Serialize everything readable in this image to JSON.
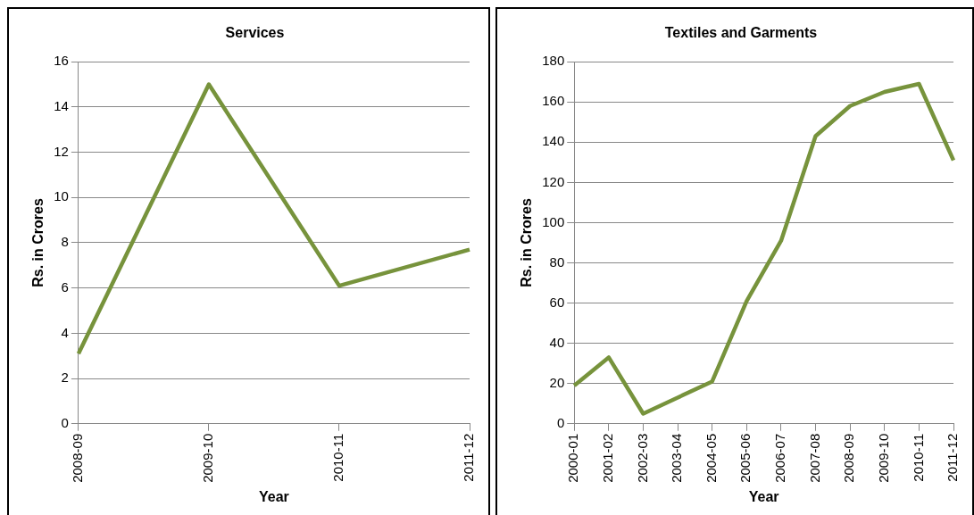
{
  "chart_data": [
    {
      "type": "line",
      "title": "Services",
      "xlabel": "Year",
      "ylabel": "Rs. in Crores",
      "categories": [
        "2008-09",
        "2009-10",
        "2010-11",
        "2011-12"
      ],
      "series": [
        {
          "color": "#77933c",
          "values": [
            3.1,
            15.0,
            6.1,
            7.7
          ]
        }
      ],
      "ylim": [
        0,
        16
      ],
      "yticks": [
        0,
        2,
        4,
        6,
        8,
        10,
        12,
        14,
        16
      ],
      "grid": "y",
      "legend": false
    },
    {
      "type": "line",
      "title": "Textiles and Garments",
      "xlabel": "Year",
      "ylabel": "Rs. in Crores",
      "categories": [
        "2000-01",
        "2001-02",
        "2002-03",
        "2003-04",
        "2004-05",
        "2005-06",
        "2006-07",
        "2007-08",
        "2008-09",
        "2009-10",
        "2010-11",
        "2011-12"
      ],
      "series": [
        {
          "color": "#77933c",
          "values": [
            19,
            33,
            5,
            13,
            21,
            61,
            91,
            143,
            158,
            165,
            169,
            131
          ]
        }
      ],
      "ylim": [
        0,
        180
      ],
      "yticks": [
        0,
        20,
        40,
        60,
        80,
        100,
        120,
        140,
        160,
        180
      ],
      "grid": "y",
      "legend": false
    }
  ]
}
